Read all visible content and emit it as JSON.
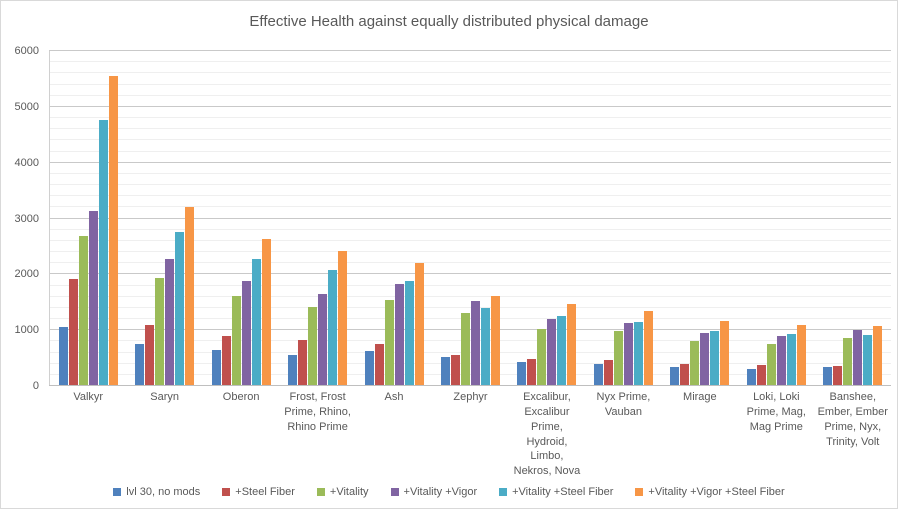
{
  "chart_data": {
    "type": "bar",
    "title": "Effective Health against equally distributed physical damage",
    "xlabel": "",
    "ylabel": "",
    "ylim": [
      0,
      6000
    ],
    "y_major_ticks": [
      0,
      1000,
      2000,
      3000,
      4000,
      5000,
      6000
    ],
    "y_minor_step": 200,
    "grid": "horizontal major and minor gridlines",
    "legend_position": "bottom",
    "categories": [
      "Valkyr",
      "Saryn",
      "Oberon",
      "Frost, Frost Prime, Rhino, Rhino Prime",
      "Ash",
      "Zephyr",
      "Excalibur, Excalibur Prime, Hydroid, Limbo, Nekros, Nova",
      "Nyx Prime, Vauban",
      "Mirage",
      "Loki, Loki Prime, Mag, Mag Prime",
      "Banshee, Ember, Ember Prime, Nyx, Trinity, Volt"
    ],
    "series": [
      {
        "name": "lvl 30, no mods",
        "color": "#4F81BD",
        "values": [
          1050,
          760,
          650,
          560,
          620,
          520,
          430,
          400,
          340,
          300,
          340
        ]
      },
      {
        "name": "+Steel Fiber",
        "color": "#C0504D",
        "values": [
          1920,
          1090,
          900,
          830,
          760,
          560,
          490,
          460,
          400,
          370,
          350
        ]
      },
      {
        "name": "+Vitality",
        "color": "#9BBB59",
        "values": [
          2690,
          1930,
          1620,
          1410,
          1540,
          1310,
          1020,
          980,
          810,
          750,
          860
        ]
      },
      {
        "name": "+Vitality +Vigor",
        "color": "#8064A2",
        "values": [
          3140,
          2270,
          1880,
          1650,
          1820,
          1530,
          1200,
          1130,
          950,
          900,
          1000
        ]
      },
      {
        "name": "+Vitality +Steel Fiber",
        "color": "#4BACC6",
        "values": [
          4770,
          2750,
          2280,
          2070,
          1880,
          1390,
          1250,
          1140,
          980,
          940,
          920
        ]
      },
      {
        "name": "+Vitality +Vigor +Steel Fiber",
        "color": "#F79646",
        "values": [
          5560,
          3200,
          2630,
          2420,
          2200,
          1620,
          1460,
          1340,
          1160,
          1090,
          1070
        ]
      }
    ]
  }
}
